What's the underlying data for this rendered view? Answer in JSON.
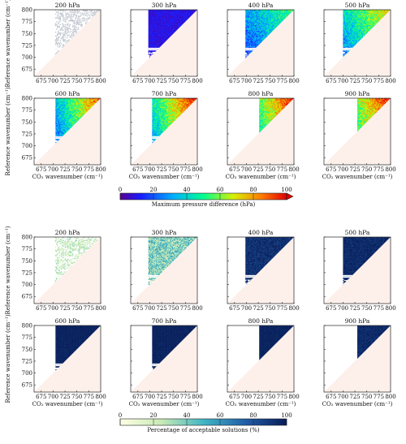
{
  "figure": {
    "groups": [
      {
        "id": "max-pressure",
        "metric": "max_pressure_difference",
        "colormap": "jet",
        "colorbar": {
          "label": "Maximum pressure difference (hPa)",
          "min": 0,
          "max": 100,
          "ticks": [
            "0",
            "20",
            "40",
            "60",
            "80",
            "100"
          ],
          "extend": "max"
        }
      },
      {
        "id": "acceptable-solutions",
        "metric": "percentage_acceptable",
        "colormap": "blues",
        "colorbar": {
          "label": "Percentage of acceptable solutions (%)",
          "min": 0,
          "max": 100,
          "ticks": [
            "0",
            "20",
            "40",
            "60",
            "80",
            "100"
          ],
          "extend": "none"
        }
      }
    ],
    "panel_titles": [
      "200 hPa",
      "300 hPa",
      "400 hPa",
      "500 hPa",
      "600 hPa",
      "700 hPa",
      "800 hPa",
      "900 hPa"
    ],
    "y_axis_label": "Reference wavenumber (cm⁻¹)",
    "x_axis_label": "CO₂ wavenumber (cm⁻¹)",
    "colors": {
      "background": "#ffffff",
      "lower_triangle": "#fdf0ea"
    }
  },
  "chart_data": {
    "type": "heatmap",
    "layout": "2 groups of 2x4 small multiples",
    "x": {
      "label": "CO₂ wavenumber (cm⁻¹)",
      "range": [
        660,
        800
      ],
      "ticks": [
        675,
        700,
        725,
        750,
        775,
        800
      ]
    },
    "y": {
      "label": "Reference wavenumber (cm⁻¹)",
      "range": [
        660,
        800
      ],
      "ticks": [
        675,
        700,
        725,
        750,
        775,
        800
      ]
    },
    "masked_region": "reference wavenumber < CO₂ wavenumber (lower-right triangle)",
    "pressure_levels": [
      "200 hPa",
      "300 hPa",
      "400 hPa",
      "500 hPa",
      "600 hPa",
      "700 hPa",
      "800 hPa",
      "900 hPa"
    ],
    "panels_max_pressure_difference": [
      {
        "level": "200 hPa",
        "x_start": 704,
        "description": "sparse, mostly empty"
      },
      {
        "level": "300 hPa",
        "x_start": 697,
        "typical_value_hPa": 10
      },
      {
        "level": "400 hPa",
        "x_start": 698,
        "typical_value_hPa": [
          25,
          50
        ],
        "max_value_hPa": 70
      },
      {
        "level": "500 hPa",
        "x_start": 700,
        "typical_value_hPa": [
          35,
          70
        ],
        "max_value_hPa": 90
      },
      {
        "level": "600 hPa",
        "x_start": 705,
        "typical_value_hPa": [
          30,
          85
        ],
        "max_value_hPa": 100
      },
      {
        "level": "700 hPa",
        "x_start": 705,
        "typical_value_hPa": [
          40,
          95
        ],
        "max_value_hPa": 100
      },
      {
        "level": "800 hPa",
        "x_start": 727,
        "typical_value_hPa": [
          50,
          95
        ],
        "max_value_hPa": 100
      },
      {
        "level": "900 hPa",
        "x_start": 730,
        "typical_value_hPa": [
          55,
          95
        ],
        "max_value_hPa": 100
      }
    ],
    "panels_percentage_acceptable": [
      {
        "level": "200 hPa",
        "x_start": 704,
        "typical_percent": [
          5,
          20
        ]
      },
      {
        "level": "300 hPa",
        "x_start": 697,
        "typical_percent": [
          15,
          60
        ]
      },
      {
        "level": "400 hPa",
        "x_start": 698,
        "typical_percent": [
          85,
          100
        ]
      },
      {
        "level": "500 hPa",
        "x_start": 700,
        "typical_percent": [
          90,
          100
        ]
      },
      {
        "level": "600 hPa",
        "x_start": 705,
        "typical_percent": [
          95,
          100
        ]
      },
      {
        "level": "700 hPa",
        "x_start": 705,
        "typical_percent": [
          95,
          100
        ]
      },
      {
        "level": "800 hPa",
        "x_start": 727,
        "typical_percent": [
          95,
          100
        ]
      },
      {
        "level": "900 hPa",
        "x_start": 730,
        "typical_percent": [
          90,
          100
        ]
      }
    ],
    "colorbar_ticks": [
      0,
      20,
      40,
      60,
      80,
      100
    ]
  }
}
